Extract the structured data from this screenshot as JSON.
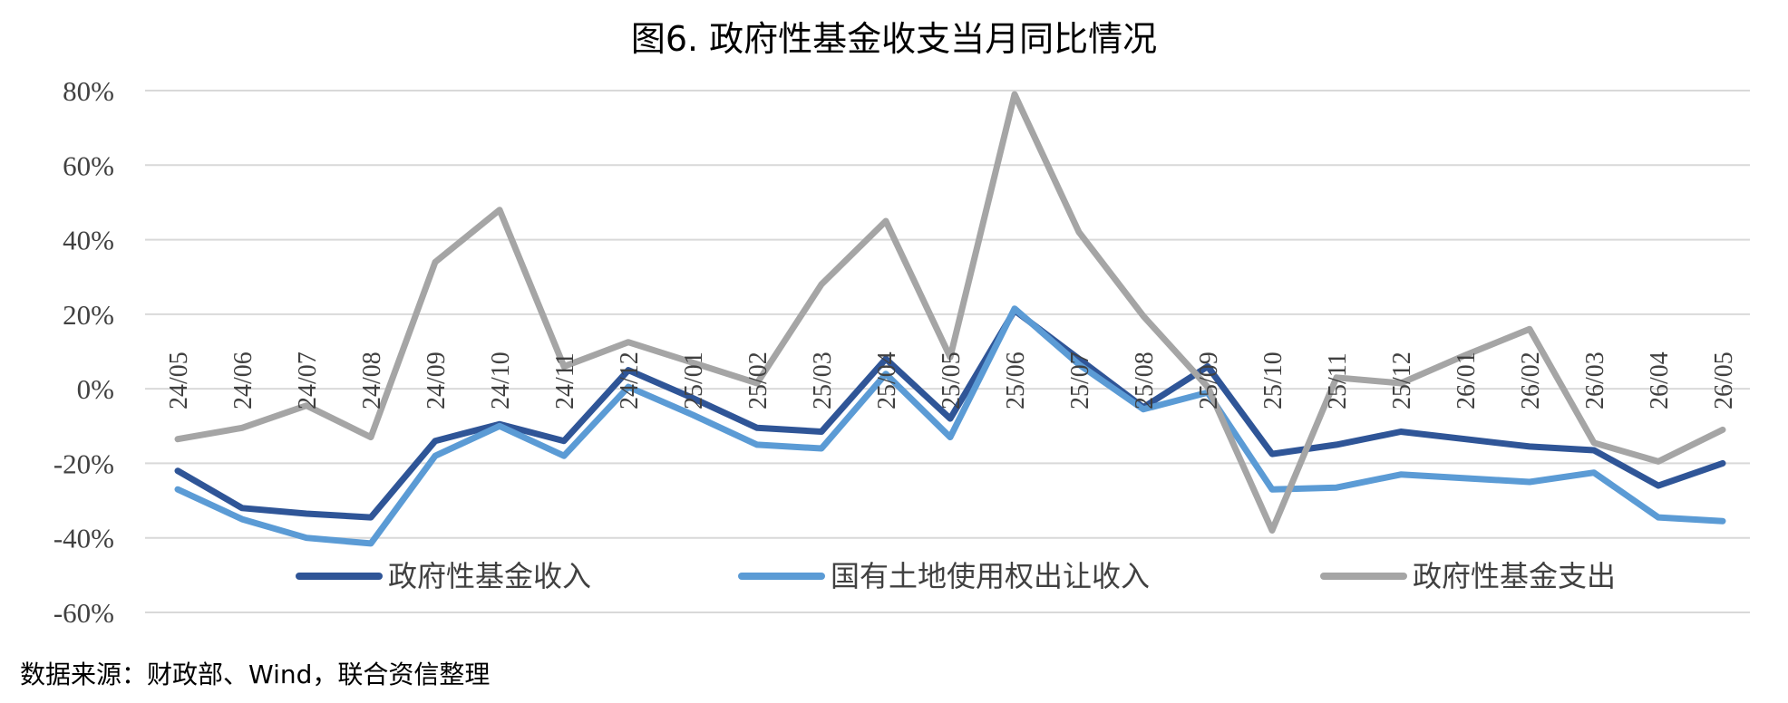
{
  "chart_data": {
    "type": "line",
    "title": "图6. 政府性基金收支当月同比情况",
    "source": "数据来源：财政部、Wind，联合资信整理",
    "xlabel": "",
    "ylabel": "",
    "ylim": [
      -60,
      80
    ],
    "yticks": [
      "80%",
      "60%",
      "40%",
      "20%",
      "0%",
      "-20%",
      "-40%",
      "-60%"
    ],
    "grid": true,
    "legend_position": "bottom",
    "categories": [
      "24/05",
      "24/06",
      "24/07",
      "24/08",
      "24/09",
      "24/10",
      "24/11",
      "24/12",
      "25/01",
      "25/02",
      "25/03",
      "25/04",
      "25/05",
      "25/06",
      "25/07",
      "25/08",
      "25/09",
      "25/10",
      "25/11",
      "25/12",
      "26/01",
      "26/02",
      "26/03",
      "26/04",
      "26/05"
    ],
    "series": [
      {
        "name": "政府性基金收入",
        "color": "#2f5597",
        "values": [
          -22,
          -32,
          -33.5,
          -34.5,
          -14,
          -9.5,
          -14,
          5,
          -2.5,
          -10.5,
          -11.5,
          8,
          -8,
          21,
          8,
          -5,
          6,
          -17.5,
          -15,
          -11.5,
          -13.5,
          -15.5,
          -16.5,
          -26,
          -20
        ]
      },
      {
        "name": "国有土地使用权出让收入",
        "color": "#5b9bd5",
        "values": [
          -27,
          -35,
          -40,
          -41.5,
          -18,
          -10,
          -18,
          0.5,
          -7,
          -15,
          -16,
          4,
          -13,
          21.5,
          6.5,
          -5.5,
          -1,
          -27,
          -26.5,
          -23,
          -24,
          -25,
          -22.5,
          -34.5,
          -35.5
        ]
      },
      {
        "name": "政府性基金支出",
        "color": "#a5a5a5",
        "values": [
          -13.5,
          -10.5,
          -4.5,
          -13,
          34,
          48,
          6,
          12.5,
          7,
          1.5,
          28,
          45,
          8.5,
          79,
          42,
          19.5,
          0.5,
          -38,
          3,
          1.5,
          9,
          16,
          -14.5,
          -19.5,
          -11
        ]
      }
    ]
  }
}
